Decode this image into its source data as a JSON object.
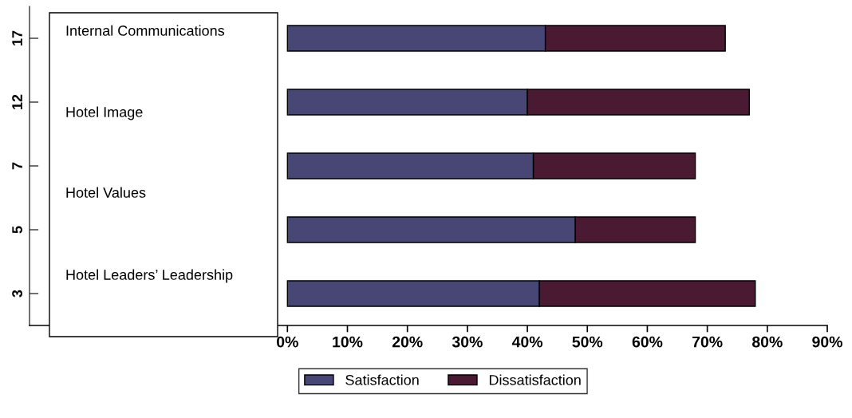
{
  "chart_data": {
    "type": "bar",
    "orientation": "horizontal",
    "stacked": true,
    "categories": [
      "17",
      "12",
      "7",
      "5",
      "3"
    ],
    "series": [
      {
        "name": "Satisfaction",
        "color": "#474674",
        "values": [
          43,
          40,
          41,
          48,
          42
        ]
      },
      {
        "name": "Dissatisfaction",
        "color": "#4a1a33",
        "values": [
          30,
          37,
          27,
          20,
          36
        ]
      }
    ],
    "xlim": [
      -43,
      90
    ],
    "xticks": [
      {
        "value": 0,
        "label": "0%"
      },
      {
        "value": 10,
        "label": "10%"
      },
      {
        "value": 20,
        "label": "20%"
      },
      {
        "value": 30,
        "label": "30%"
      },
      {
        "value": 40,
        "label": "40%"
      },
      {
        "value": 50,
        "label": "50%"
      },
      {
        "value": 60,
        "label": "60%"
      },
      {
        "value": 70,
        "label": "70%"
      },
      {
        "value": 80,
        "label": "80%"
      },
      {
        "value": 90,
        "label": "90%"
      }
    ],
    "annotations": [
      "Internal Communications",
      "Hotel Image",
      "Hotel Values",
      "Hotel Leaders’ Leadership"
    ],
    "legend": "bottom",
    "grid": false
  }
}
